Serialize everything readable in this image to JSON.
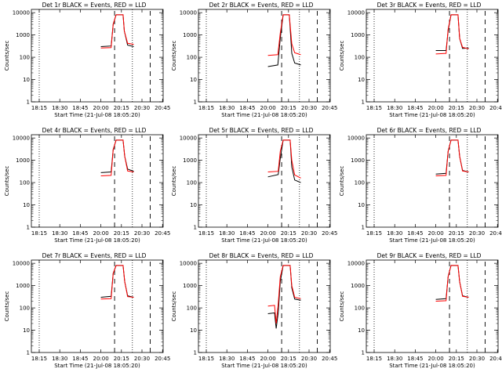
{
  "chart_data": {
    "type": "line",
    "grid_layout": {
      "rows": 3,
      "cols": 3
    },
    "common": {
      "xlabel": "Start Time (21-Jul-08 18:05:20)",
      "ylabel": "Counts/sec",
      "x_ticks": [
        "18:15",
        "18:30",
        "18:45",
        "20:00",
        "20:15",
        "20:30",
        "20:45"
      ],
      "y_scale": "log",
      "y_ticks": [
        "1",
        "10",
        "100",
        "1000",
        "10000"
      ],
      "ylim": [
        1,
        14000
      ],
      "vlines_dotted": [
        "18:15",
        "20:23"
      ],
      "vlines_dashed": [
        "20:10",
        "20:36"
      ],
      "series": [
        {
          "name": "Events",
          "color": "#000000"
        },
        {
          "name": "LLD",
          "color": "#ff0000"
        }
      ]
    },
    "panels": [
      {
        "title": "Det 1r BLACK = Events, RED = LLD",
        "events": [
          [
            20.0,
            300
          ],
          [
            20.125,
            320
          ],
          [
            20.15,
            3000
          ],
          [
            20.185,
            8000
          ],
          [
            20.27,
            8000
          ],
          [
            20.285,
            1500
          ],
          [
            20.325,
            350
          ],
          [
            20.4,
            300
          ]
        ],
        "lld": [
          [
            20.0,
            260
          ],
          [
            20.125,
            270
          ],
          [
            20.15,
            3000
          ],
          [
            20.185,
            8000
          ],
          [
            20.27,
            8000
          ],
          [
            20.285,
            1500
          ],
          [
            20.325,
            420
          ],
          [
            20.4,
            380
          ]
        ]
      },
      {
        "title": "Det 2r BLACK = Events, RED = LLD",
        "events": [
          [
            20.0,
            38
          ],
          [
            20.12,
            45
          ],
          [
            20.15,
            700
          ],
          [
            20.185,
            8000
          ],
          [
            20.26,
            8000
          ],
          [
            20.29,
            150
          ],
          [
            20.325,
            55
          ],
          [
            20.4,
            45
          ]
        ],
        "lld": [
          [
            20.0,
            120
          ],
          [
            20.12,
            130
          ],
          [
            20.15,
            1200
          ],
          [
            20.185,
            8000
          ],
          [
            20.26,
            8000
          ],
          [
            20.29,
            400
          ],
          [
            20.325,
            160
          ],
          [
            20.4,
            130
          ]
        ]
      },
      {
        "title": "Det 3r BLACK = Events, RED = LLD",
        "events": [
          [
            20.0,
            200
          ],
          [
            20.125,
            200
          ],
          [
            20.15,
            1500
          ],
          [
            20.185,
            8000
          ],
          [
            20.27,
            8000
          ],
          [
            20.29,
            700
          ],
          [
            20.325,
            250
          ],
          [
            20.4,
            260
          ]
        ],
        "lld": [
          [
            20.0,
            140
          ],
          [
            20.125,
            150
          ],
          [
            20.15,
            1800
          ],
          [
            20.185,
            8000
          ],
          [
            20.27,
            8000
          ],
          [
            20.29,
            700
          ],
          [
            20.325,
            280
          ],
          [
            20.4,
            240
          ]
        ]
      },
      {
        "title": "Det 4r BLACK = Events, RED = LLD",
        "events": [
          [
            20.0,
            280
          ],
          [
            20.125,
            300
          ],
          [
            20.15,
            3000
          ],
          [
            20.185,
            8000
          ],
          [
            20.27,
            8000
          ],
          [
            20.29,
            1500
          ],
          [
            20.325,
            400
          ],
          [
            20.4,
            320
          ]
        ],
        "lld": [
          [
            20.0,
            200
          ],
          [
            20.125,
            210
          ],
          [
            20.15,
            3000
          ],
          [
            20.185,
            8000
          ],
          [
            20.27,
            8000
          ],
          [
            20.29,
            1500
          ],
          [
            20.325,
            330
          ],
          [
            20.4,
            300
          ]
        ]
      },
      {
        "title": "Det 5r BLACK = Events, RED = LLD",
        "events": [
          [
            20.0,
            180
          ],
          [
            20.125,
            230
          ],
          [
            20.15,
            1200
          ],
          [
            20.185,
            8000
          ],
          [
            20.27,
            8000
          ],
          [
            20.29,
            500
          ],
          [
            20.325,
            130
          ],
          [
            20.4,
            100
          ]
        ],
        "lld": [
          [
            20.0,
            300
          ],
          [
            20.125,
            320
          ],
          [
            20.15,
            2500
          ],
          [
            20.185,
            8000
          ],
          [
            20.27,
            8000
          ],
          [
            20.29,
            1000
          ],
          [
            20.325,
            220
          ],
          [
            20.4,
            160
          ]
        ]
      },
      {
        "title": "Det 6r BLACK = Events, RED = LLD",
        "events": [
          [
            20.0,
            240
          ],
          [
            20.125,
            260
          ],
          [
            20.15,
            2500
          ],
          [
            20.185,
            8000
          ],
          [
            20.27,
            8000
          ],
          [
            20.29,
            1500
          ],
          [
            20.325,
            350
          ],
          [
            20.4,
            300
          ]
        ],
        "lld": [
          [
            20.0,
            200
          ],
          [
            20.125,
            210
          ],
          [
            20.15,
            2500
          ],
          [
            20.185,
            8000
          ],
          [
            20.27,
            8000
          ],
          [
            20.29,
            1500
          ],
          [
            20.325,
            330
          ],
          [
            20.4,
            300
          ]
        ]
      },
      {
        "title": "Det 7r BLACK = Events, RED = LLD",
        "events": [
          [
            20.0,
            300
          ],
          [
            20.125,
            330
          ],
          [
            20.15,
            3500
          ],
          [
            20.185,
            8000
          ],
          [
            20.27,
            8000
          ],
          [
            20.29,
            1500
          ],
          [
            20.325,
            350
          ],
          [
            20.4,
            300
          ]
        ],
        "lld": [
          [
            20.0,
            250
          ],
          [
            20.125,
            260
          ],
          [
            20.15,
            3500
          ],
          [
            20.185,
            8000
          ],
          [
            20.27,
            8000
          ],
          [
            20.29,
            1500
          ],
          [
            20.325,
            320
          ],
          [
            20.4,
            300
          ]
        ]
      },
      {
        "title": "Det 8r BLACK = Events, RED = LLD",
        "events": [
          [
            20.0,
            55
          ],
          [
            20.08,
            60
          ],
          [
            20.1,
            12
          ],
          [
            20.125,
            60
          ],
          [
            20.15,
            1500
          ],
          [
            20.185,
            8000
          ],
          [
            20.27,
            8000
          ],
          [
            20.29,
            800
          ],
          [
            20.325,
            250
          ],
          [
            20.4,
            220
          ]
        ],
        "lld": [
          [
            20.0,
            120
          ],
          [
            20.08,
            130
          ],
          [
            20.1,
            20
          ],
          [
            20.125,
            150
          ],
          [
            20.15,
            2500
          ],
          [
            20.185,
            8000
          ],
          [
            20.27,
            8000
          ],
          [
            20.29,
            1000
          ],
          [
            20.325,
            300
          ],
          [
            20.4,
            260
          ]
        ]
      },
      {
        "title": "Det 9r BLACK = Events, RED = LLD",
        "events": [
          [
            20.0,
            240
          ],
          [
            20.125,
            260
          ],
          [
            20.15,
            2500
          ],
          [
            20.185,
            8000
          ],
          [
            20.27,
            8000
          ],
          [
            20.29,
            1500
          ],
          [
            20.325,
            350
          ],
          [
            20.4,
            300
          ]
        ],
        "lld": [
          [
            20.0,
            200
          ],
          [
            20.125,
            210
          ],
          [
            20.15,
            2500
          ],
          [
            20.185,
            8000
          ],
          [
            20.27,
            8000
          ],
          [
            20.29,
            1500
          ],
          [
            20.325,
            330
          ],
          [
            20.4,
            300
          ]
        ]
      }
    ]
  }
}
